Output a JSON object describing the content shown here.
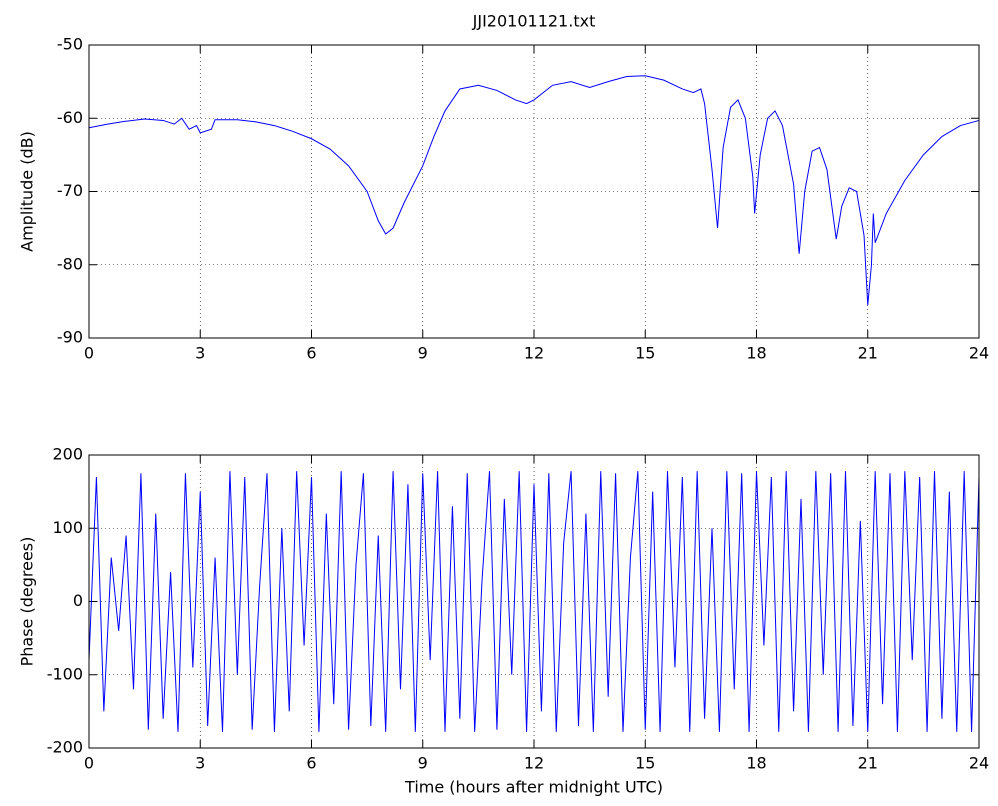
{
  "chart_data": [
    {
      "type": "line",
      "title": "JJI20101121.txt",
      "ylabel": "Amplitude (dB)",
      "xlim": [
        0,
        24
      ],
      "xticks": [
        0,
        3,
        6,
        9,
        12,
        15,
        18,
        21,
        24
      ],
      "ylim": [
        -90,
        -50
      ],
      "yticks": [
        -90,
        -80,
        -70,
        -60,
        -50
      ],
      "grid": true,
      "x": [
        0,
        0.5,
        1,
        1.5,
        2,
        2.3,
        2.5,
        2.7,
        2.9,
        3,
        3.3,
        3.4,
        4,
        4.5,
        5,
        5.5,
        6,
        6.5,
        7,
        7.5,
        7.8,
        8,
        8.2,
        8.5,
        9,
        9.3,
        9.6,
        10,
        10.5,
        11,
        11.5,
        11.8,
        12,
        12.5,
        13,
        13.5,
        14,
        14.5,
        15,
        15.5,
        16,
        16.3,
        16.5,
        16.6,
        16.8,
        16.95,
        17.1,
        17.3,
        17.5,
        17.7,
        17.9,
        17.95,
        18.1,
        18.3,
        18.5,
        18.7,
        19,
        19.15,
        19.3,
        19.5,
        19.7,
        19.9,
        20.15,
        20.3,
        20.5,
        20.7,
        20.9,
        21,
        21.1,
        21.15,
        21.2,
        21.5,
        22,
        22.5,
        23,
        23.5,
        24
      ],
      "series": [
        {
          "color": "#0000ff",
          "values": [
            -61.3,
            -60.8,
            -60.4,
            -60.1,
            -60.3,
            -60.8,
            -60.0,
            -61.5,
            -61,
            -62,
            -61.5,
            -60.2,
            -60.2,
            -60.5,
            -61.0,
            -61.8,
            -62.8,
            -64.2,
            -66.5,
            -70,
            -74,
            -75.8,
            -75,
            -71.5,
            -66.5,
            -62.5,
            -59,
            -56,
            -55.5,
            -56.2,
            -57.5,
            -58,
            -57.5,
            -55.5,
            -55,
            -55.8,
            -55,
            -54.3,
            -54.2,
            -54.8,
            -56,
            -56.5,
            -56,
            -58,
            -67,
            -75,
            -64,
            -58.5,
            -57.5,
            -60,
            -68,
            -73,
            -65,
            -60,
            -59,
            -61,
            -69,
            -78.5,
            -70,
            -64.5,
            -64,
            -67,
            -76.5,
            -72,
            -69.5,
            -70,
            -76,
            -85.5,
            -80,
            -73,
            -77,
            -73,
            -68.5,
            -65,
            -62.5,
            -61,
            -60.3
          ]
        }
      ]
    },
    {
      "type": "line",
      "xlabel": "Time (hours after midnight UTC)",
      "ylabel": "Phase (degrees)",
      "xlim": [
        0,
        24
      ],
      "xticks": [
        0,
        3,
        6,
        9,
        12,
        15,
        18,
        21,
        24
      ],
      "ylim": [
        -200,
        200
      ],
      "yticks": [
        -200,
        -100,
        0,
        100,
        200
      ],
      "grid": true,
      "x": [
        0,
        0.2,
        0.4,
        0.6,
        0.8,
        1,
        1.2,
        1.4,
        1.6,
        1.8,
        2,
        2.2,
        2.4,
        2.6,
        2.8,
        3,
        3.2,
        3.4,
        3.6,
        3.8,
        4,
        4.2,
        4.4,
        4.6,
        4.8,
        5,
        5.2,
        5.4,
        5.6,
        5.8,
        6,
        6.2,
        6.4,
        6.6,
        6.8,
        7,
        7.2,
        7.4,
        7.6,
        7.8,
        8,
        8.2,
        8.4,
        8.6,
        8.8,
        9,
        9.2,
        9.4,
        9.6,
        9.8,
        10,
        10.2,
        10.4,
        10.6,
        10.8,
        11,
        11.2,
        11.4,
        11.6,
        11.8,
        12,
        12.2,
        12.4,
        12.6,
        12.8,
        13,
        13.2,
        13.4,
        13.6,
        13.8,
        14,
        14.2,
        14.4,
        14.6,
        14.8,
        15,
        15.2,
        15.4,
        15.6,
        15.8,
        16,
        16.2,
        16.4,
        16.6,
        16.8,
        17,
        17.2,
        17.4,
        17.6,
        17.8,
        18,
        18.2,
        18.4,
        18.6,
        18.8,
        19,
        19.2,
        19.4,
        19.6,
        19.8,
        20,
        20.2,
        20.4,
        20.6,
        20.8,
        21,
        21.2,
        21.4,
        21.6,
        21.8,
        22,
        22.2,
        22.4,
        22.6,
        22.8,
        23,
        23.2,
        23.4,
        23.6,
        23.8,
        24
      ],
      "series": [
        {
          "color": "#0000ff",
          "values": [
            -80,
            170,
            -150,
            60,
            -40,
            90,
            -120,
            175,
            -175,
            120,
            -160,
            40,
            -178,
            175,
            -90,
            150,
            -170,
            60,
            -178,
            178,
            -100,
            170,
            -175,
            20,
            175,
            -178,
            100,
            -150,
            178,
            -60,
            170,
            -178,
            120,
            -140,
            178,
            -175,
            50,
            175,
            -170,
            90,
            -178,
            178,
            -120,
            160,
            -178,
            175,
            -80,
            178,
            -178,
            130,
            -160,
            175,
            -178,
            30,
            178,
            -175,
            140,
            -100,
            178,
            -178,
            160,
            -150,
            175,
            -178,
            80,
            178,
            -170,
            120,
            -178,
            178,
            -130,
            175,
            -178,
            60,
            178,
            -175,
            150,
            -178,
            178,
            -90,
            170,
            -178,
            178,
            -160,
            100,
            -178,
            178,
            -120,
            175,
            -178,
            178,
            -60,
            170,
            -178,
            178,
            -150,
            140,
            -178,
            178,
            -100,
            175,
            -178,
            178,
            -170,
            110,
            -178,
            178,
            -140,
            175,
            -178,
            178,
            -80,
            170,
            -178,
            178,
            -160,
            150,
            -178,
            178,
            -178,
            170
          ]
        }
      ]
    }
  ]
}
